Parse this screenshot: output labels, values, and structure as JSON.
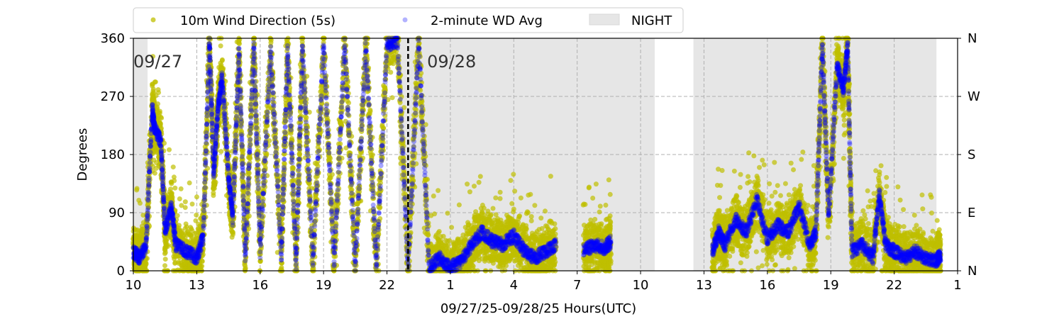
{
  "chart_data": {
    "type": "scatter",
    "xlabel": "09/27/25-09/28/25  Hours(UTC)",
    "ylabel": "Degrees",
    "xlim": [
      10,
      49
    ],
    "ylim": [
      0,
      360
    ],
    "x_ticks": [
      10,
      13,
      16,
      19,
      22,
      25,
      28,
      31,
      34,
      37,
      40,
      43,
      46,
      49
    ],
    "x_tick_labels": [
      "10",
      "13",
      "16",
      "19",
      "22",
      "1",
      "4",
      "7",
      "10",
      "13",
      "16",
      "19",
      "22",
      "1"
    ],
    "y_ticks": [
      0,
      90,
      180,
      270,
      360
    ],
    "y_tick_labels": [
      "0",
      "90",
      "180",
      "270",
      "360"
    ],
    "y2_tick_labels": [
      "N",
      "E",
      "S",
      "W",
      "N"
    ],
    "grid": true,
    "legend": {
      "placement": "top",
      "entries": [
        "10m Wind Direction (5s)",
        "2-minute WD Avg",
        "NIGHT"
      ]
    },
    "colors": {
      "wd5s": "#bfbf00",
      "avg": "#0000ff",
      "night": "#e6e6e6"
    },
    "night_spans": [
      [
        10,
        10.67
      ],
      [
        22.55,
        34.67
      ],
      [
        36.5,
        48
      ]
    ],
    "day_divider": 23,
    "date_labels": [
      {
        "x": 10,
        "text": "09/27"
      },
      {
        "x": 23.9,
        "text": "09/28"
      }
    ],
    "series": [
      {
        "name": "2-minute WD Avg",
        "points": [
          [
            10.0,
            30
          ],
          [
            10.3,
            20
          ],
          [
            10.6,
            40
          ],
          [
            10.9,
            250
          ],
          [
            11.0,
            220
          ],
          [
            11.3,
            200
          ],
          [
            11.5,
            60
          ],
          [
            11.8,
            100
          ],
          [
            12.0,
            40
          ],
          [
            12.5,
            30
          ],
          [
            13.0,
            20
          ],
          [
            13.3,
            50
          ],
          [
            13.6,
            355
          ],
          [
            13.8,
            150
          ],
          [
            14.0,
            250
          ],
          [
            14.2,
            300
          ],
          [
            14.5,
            150
          ],
          [
            14.7,
            80
          ],
          [
            15.0,
            340
          ],
          [
            15.3,
            20
          ],
          [
            15.7,
            350
          ],
          [
            16.0,
            30
          ],
          [
            16.5,
            340
          ],
          [
            17.0,
            20
          ],
          [
            17.3,
            345
          ],
          [
            17.7,
            10
          ],
          [
            18.0,
            350
          ],
          [
            18.5,
            15
          ],
          [
            19.0,
            350
          ],
          [
            19.5,
            10
          ],
          [
            20.0,
            355
          ],
          [
            20.5,
            5
          ],
          [
            21.0,
            355
          ],
          [
            21.5,
            5
          ],
          [
            22.0,
            350
          ],
          [
            22.5,
            355
          ],
          [
            23.0,
            5
          ],
          [
            23.5,
            355
          ],
          [
            24.0,
            5
          ],
          [
            24.5,
            20
          ],
          [
            25.0,
            5
          ],
          [
            25.5,
            15
          ],
          [
            26.0,
            40
          ],
          [
            26.5,
            60
          ],
          [
            27.0,
            45
          ],
          [
            27.5,
            40
          ],
          [
            28.0,
            55
          ],
          [
            28.5,
            30
          ],
          [
            29.0,
            20
          ],
          [
            29.5,
            30
          ],
          [
            30.0,
            40
          ],
          [
            31.3,
            30
          ],
          [
            31.8,
            40
          ],
          [
            32.3,
            35
          ],
          [
            32.6,
            45
          ],
          [
            37.4,
            30
          ],
          [
            37.7,
            60
          ],
          [
            38.0,
            40
          ],
          [
            38.5,
            80
          ],
          [
            39.0,
            60
          ],
          [
            39.5,
            110
          ],
          [
            40.0,
            50
          ],
          [
            40.5,
            70
          ],
          [
            41.0,
            60
          ],
          [
            41.5,
            100
          ],
          [
            42.0,
            40
          ],
          [
            42.3,
            60
          ],
          [
            42.6,
            350
          ],
          [
            42.9,
            80
          ],
          [
            43.3,
            320
          ],
          [
            43.6,
            280
          ],
          [
            43.8,
            350
          ],
          [
            44.0,
            30
          ],
          [
            44.5,
            40
          ],
          [
            45.0,
            20
          ],
          [
            45.3,
            120
          ],
          [
            45.6,
            40
          ],
          [
            46.0,
            30
          ],
          [
            46.5,
            20
          ],
          [
            47.0,
            30
          ],
          [
            47.5,
            20
          ],
          [
            48.0,
            15
          ],
          [
            48.2,
            25
          ]
        ]
      },
      {
        "name": "10m Wind Direction (5s)",
        "spread_degrees": 35,
        "note_points_follow_avg": true
      }
    ]
  }
}
